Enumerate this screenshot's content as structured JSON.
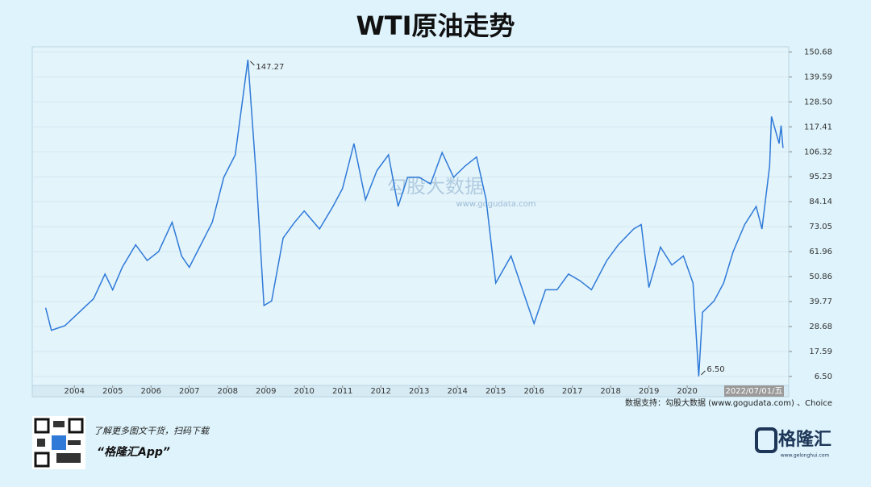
{
  "chart_data": {
    "type": "line",
    "title": "WTI原油走势",
    "color": "#2f7ad8",
    "x": [
      2003.25,
      2003.4,
      2003.75,
      2004.0,
      2004.25,
      2004.5,
      2004.8,
      2005.0,
      2005.25,
      2005.6,
      2005.9,
      2006.2,
      2006.55,
      2006.8,
      2007.0,
      2007.3,
      2007.6,
      2007.9,
      2008.2,
      2008.53,
      2008.75,
      2008.95,
      2009.15,
      2009.45,
      2009.75,
      2010.0,
      2010.4,
      2010.75,
      2011.0,
      2011.3,
      2011.6,
      2011.9,
      2012.2,
      2012.45,
      2012.7,
      2013.0,
      2013.3,
      2013.6,
      2013.9,
      2014.2,
      2014.5,
      2014.75,
      2015.0,
      2015.4,
      2015.7,
      2016.0,
      2016.3,
      2016.6,
      2016.9,
      2017.2,
      2017.5,
      2017.9,
      2018.2,
      2018.6,
      2018.8,
      2019.0,
      2019.3,
      2019.6,
      2019.9,
      2020.15,
      2020.3,
      2020.4,
      2020.7,
      2020.95,
      2021.2,
      2021.5,
      2021.8,
      2021.95,
      2022.15,
      2022.2,
      2022.4,
      2022.45,
      2022.5
    ],
    "values": [
      37,
      27,
      29,
      33,
      37,
      41,
      52,
      45,
      55,
      65,
      58,
      62,
      75,
      60,
      55,
      65,
      75,
      95,
      105,
      147.27,
      95,
      38,
      40,
      68,
      75,
      80,
      72,
      82,
      90,
      110,
      85,
      98,
      105,
      82,
      95,
      95,
      92,
      106,
      95,
      100,
      104,
      85,
      48,
      60,
      45,
      30,
      45,
      45,
      52,
      49,
      45,
      58,
      65,
      72,
      74,
      46,
      64,
      56,
      60,
      48,
      6.5,
      35,
      40,
      48,
      62,
      74,
      82,
      72,
      100,
      122,
      110,
      118,
      108
    ],
    "xlim": [
      2002.9,
      2022.65
    ],
    "ylim": [
      2.5,
      153
    ],
    "xticks": [
      2004,
      2005,
      2006,
      2007,
      2008,
      2009,
      2010,
      2011,
      2012,
      2013,
      2014,
      2015,
      2016,
      2017,
      2018,
      2019,
      2020
    ],
    "yticks": [
      {
        "value": 6.5,
        "label": "6.50"
      },
      17.59,
      28.68,
      39.77,
      50.86,
      61.96,
      73.05,
      84.14,
      95.23,
      106.32,
      117.41,
      {
        "value": 128.5,
        "label": "128.50"
      },
      139.59,
      150.68
    ],
    "annotations": [
      {
        "x": 2008.53,
        "y": 147.27
      },
      {
        "x": 2020.3,
        "y": 6.5,
        "label": "6.50"
      }
    ],
    "cursor_label": "2022/07/01/五",
    "watermark": "勾股大数据",
    "watermark_url": "www.gogudata.com",
    "source": "数据支持：勾股大数据 (www.gogudata.com) 、Choice"
  },
  "footer": {
    "promo": "了解更多图文干货，扫码下载",
    "app": "“格隆汇App”",
    "logo": "格隆汇",
    "logo_url": "www.gelonghui.com"
  }
}
